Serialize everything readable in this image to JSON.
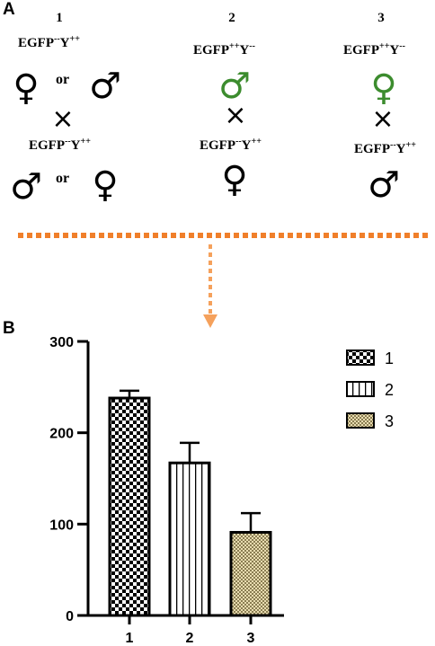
{
  "panel_a": {
    "label": "A",
    "crosses": [
      {
        "number": "1",
        "parent1": {
          "genotype": "EGFP",
          "egfp_sup": "--",
          "y": "Y",
          "y_sup": "++"
        },
        "parent1_symbols": {
          "left": "♀",
          "or": "or",
          "right": "♂"
        },
        "times": "×",
        "parent2": {
          "genotype": "EGFP",
          "egfp_sup": "--",
          "y": "Y",
          "y_sup": "++"
        },
        "parent2_symbols": {
          "left": "♂",
          "or": "or",
          "right": "♀"
        }
      },
      {
        "number": "2",
        "parent1": {
          "genotype": "EGFP",
          "egfp_sup": "++",
          "y": "Y",
          "y_sup": "--"
        },
        "parent1_symbol": "♂",
        "times": "×",
        "parent2": {
          "genotype": "EGFP",
          "egfp_sup": "--",
          "y": "Y",
          "y_sup": "++"
        },
        "parent2_symbol": "♀"
      },
      {
        "number": "3",
        "parent1": {
          "genotype": "EGFP",
          "egfp_sup": "++",
          "y": "Y",
          "y_sup": "--"
        },
        "parent1_symbol": "♀",
        "times": "×",
        "parent2": {
          "genotype": "EGFP",
          "egfp_sup": "--",
          "y": "Y",
          "y_sup": "++"
        },
        "parent2_symbol": "♂"
      }
    ],
    "colors": {
      "highlight_green": "#3c8c2e",
      "arrow_orange": "#f07f2a"
    }
  },
  "panel_b": {
    "label": "B"
  },
  "chart_data": {
    "type": "bar",
    "categories": [
      "1",
      "2",
      "3"
    ],
    "values": [
      238,
      167,
      91
    ],
    "errors": [
      8,
      22,
      21
    ],
    "ylim": [
      0,
      300
    ],
    "yticks": [
      "0",
      "100",
      "200",
      "300"
    ],
    "xlabel": "",
    "ylabel": "",
    "legend": {
      "placement": "top-right",
      "entries": [
        "1",
        "2",
        "3"
      ]
    },
    "patterns": [
      "checkerboard",
      "vertical-stripes",
      "fine-check-tan"
    ],
    "grid": false
  }
}
